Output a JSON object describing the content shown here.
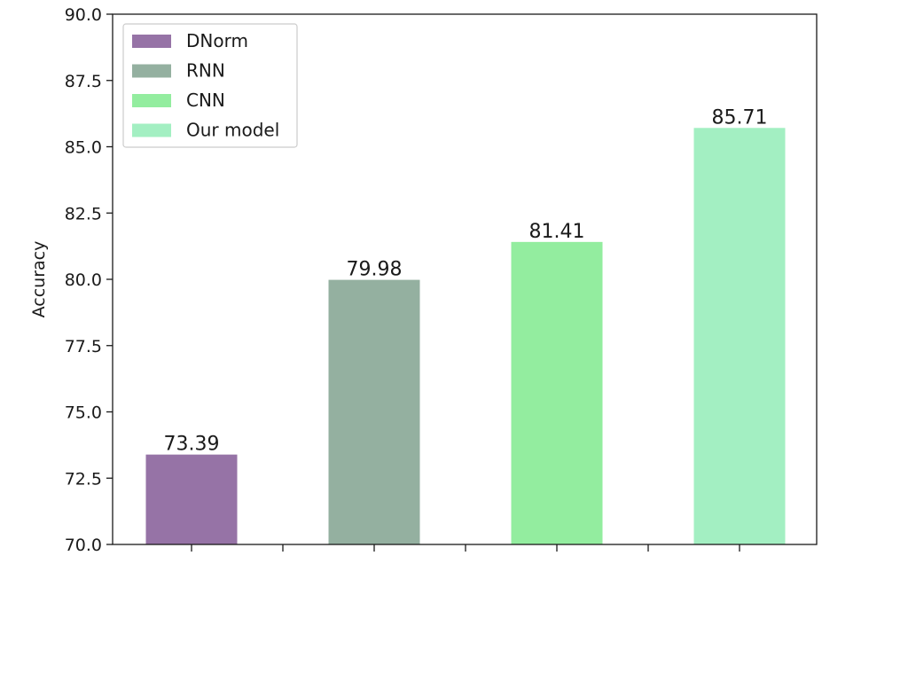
{
  "chart_data": {
    "type": "bar",
    "categories": [
      "DNorm",
      "RNN",
      "CNN",
      "Our model"
    ],
    "values": [
      73.39,
      79.98,
      81.41,
      85.71
    ],
    "value_labels": [
      "73.39",
      "79.98",
      "81.41",
      "85.71"
    ],
    "colors": [
      "#9673a6",
      "#94b0a0",
      "#93ed9f",
      "#a3efc2"
    ],
    "title": "",
    "xlabel": "",
    "ylabel": "Accuracy",
    "ylim": [
      70.0,
      90.0
    ],
    "yticks": [
      "70.0",
      "72.5",
      "75.0",
      "77.5",
      "80.0",
      "82.5",
      "85.0",
      "87.5",
      "90.0"
    ],
    "xtick_labels": [
      "",
      "",
      "",
      "",
      "",
      "",
      ""
    ],
    "grid": false,
    "legend": {
      "position": "top-left",
      "entries": [
        {
          "label": "DNorm",
          "color": "#9673a6"
        },
        {
          "label": "RNN",
          "color": "#94b0a0"
        },
        {
          "label": "CNN",
          "color": "#93ed9f"
        },
        {
          "label": "Our model",
          "color": "#a3efc2"
        }
      ]
    }
  }
}
